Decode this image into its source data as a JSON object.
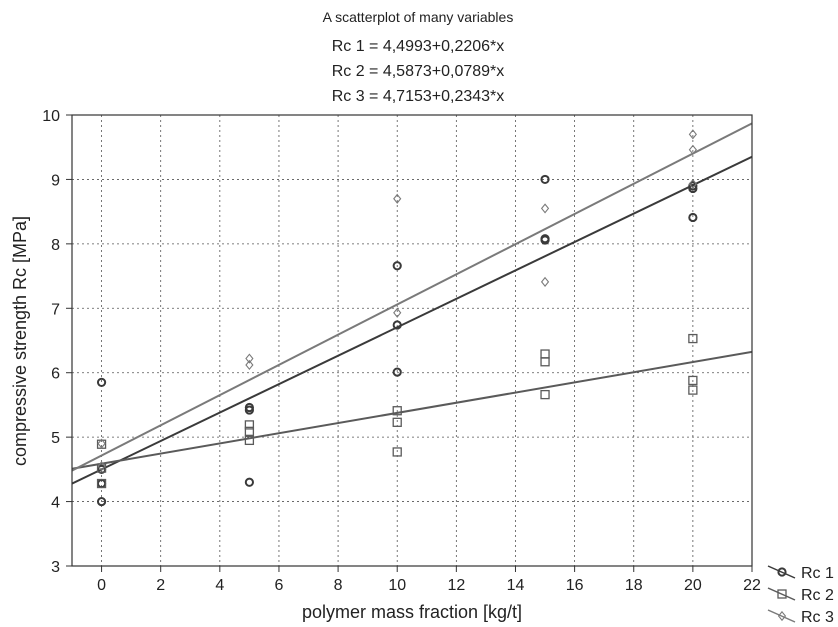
{
  "chart_data": {
    "type": "scatter",
    "title_lines": [
      "A scatterplot of many variables",
      "Rc 1 = 4,4993+0,2206*x",
      "Rc 2 = 4,5873+0,0789*x",
      "Rc 3 = 4,7153+0,2343*x"
    ],
    "xlabel": "polymer mass fraction [kg/t]",
    "ylabel": "compressive strength Rc [MPa]",
    "xlim": [
      -1,
      22
    ],
    "ylim": [
      3,
      10
    ],
    "xticks": [
      0,
      2,
      4,
      6,
      8,
      10,
      12,
      14,
      16,
      18,
      20,
      22
    ],
    "yticks": [
      3,
      4,
      5,
      6,
      7,
      8,
      9,
      10
    ],
    "grid": true,
    "legend_position": "bottom-right",
    "series": [
      {
        "name": "Rc 1",
        "marker": "circle",
        "color": "#3a3a3a",
        "fit": {
          "intercept": 4.4993,
          "slope": 0.2206
        },
        "points": [
          [
            0,
            5.85
          ],
          [
            0,
            4.5
          ],
          [
            0,
            4.28
          ],
          [
            0,
            4.0
          ],
          [
            5,
            5.46
          ],
          [
            5,
            5.42
          ],
          [
            5,
            4.3
          ],
          [
            10,
            7.66
          ],
          [
            10,
            6.74
          ],
          [
            10,
            6.01
          ],
          [
            15,
            9.0
          ],
          [
            15,
            8.08
          ],
          [
            15,
            8.06
          ],
          [
            20,
            8.9
          ],
          [
            20,
            8.86
          ],
          [
            20,
            8.41
          ]
        ]
      },
      {
        "name": "Rc 2",
        "marker": "square",
        "color": "#5a5a5a",
        "fit": {
          "intercept": 4.5873,
          "slope": 0.0789
        },
        "points": [
          [
            0,
            4.89
          ],
          [
            0,
            4.52
          ],
          [
            0,
            4.28
          ],
          [
            5,
            5.19
          ],
          [
            5,
            5.09
          ],
          [
            5,
            4.95
          ],
          [
            10,
            5.41
          ],
          [
            10,
            5.23
          ],
          [
            10,
            4.77
          ],
          [
            15,
            6.29
          ],
          [
            15,
            6.17
          ],
          [
            15,
            5.66
          ],
          [
            20,
            6.53
          ],
          [
            20,
            5.88
          ],
          [
            20,
            5.73
          ]
        ]
      },
      {
        "name": "Rc 3",
        "marker": "diamond",
        "color": "#7a7a7a",
        "fit": {
          "intercept": 4.7153,
          "slope": 0.2343
        },
        "points": [
          [
            0,
            4.9
          ],
          [
            0,
            4.55
          ],
          [
            5,
            6.22
          ],
          [
            5,
            6.12
          ],
          [
            10,
            8.7
          ],
          [
            10,
            6.93
          ],
          [
            15,
            8.55
          ],
          [
            15,
            7.41
          ],
          [
            20,
            9.7
          ],
          [
            20,
            9.46
          ],
          [
            20,
            8.93
          ]
        ]
      }
    ]
  }
}
